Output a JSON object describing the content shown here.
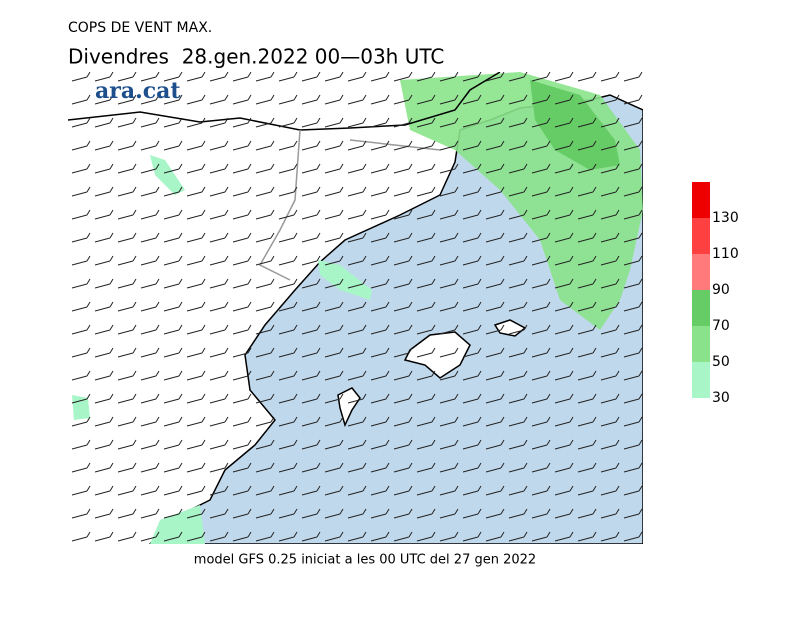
{
  "header": {
    "title": "COPS DE VENT MAX.",
    "subtitle": "Divendres  28.gen.2022 00—03h UTC"
  },
  "logo": "ara.cat",
  "footer": "model GFS 0.25 iniciat a les 00 UTC del 27 gen 2022",
  "legend": {
    "range": [
      30,
      150
    ],
    "ticks": [
      30,
      50,
      70,
      90,
      110,
      130
    ],
    "colors": [
      "#a8f5c8",
      "#8ae38a",
      "#66cc66",
      "#ff7b7b",
      "#ff4040",
      "#ee0000"
    ]
  }
}
